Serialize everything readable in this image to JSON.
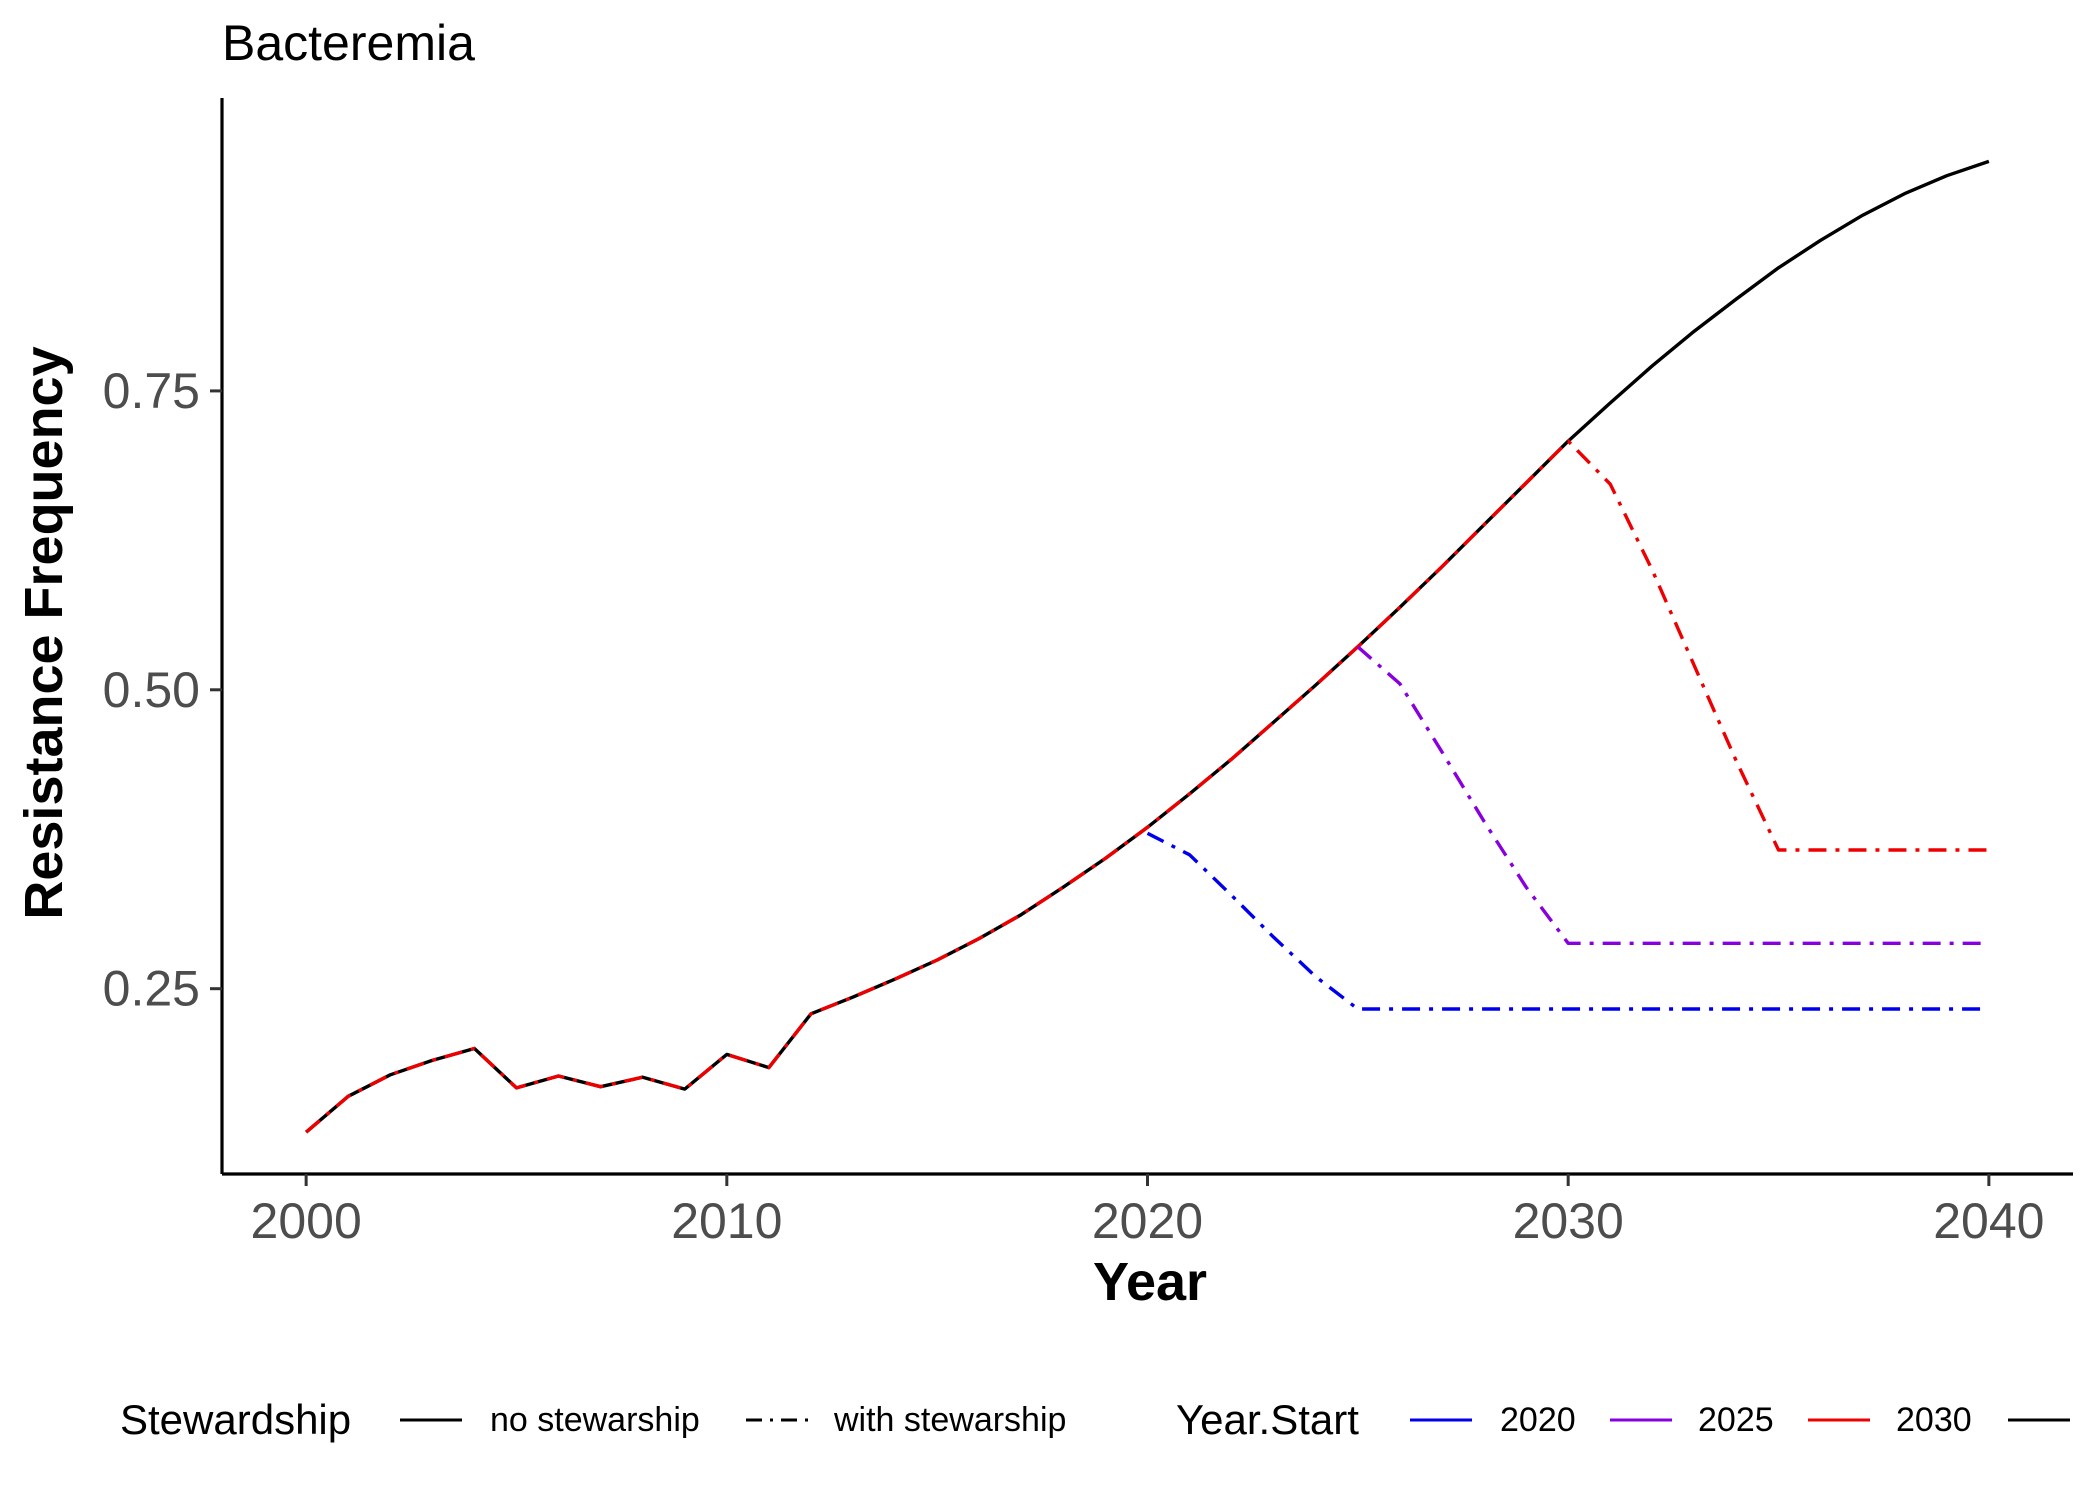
{
  "chart_data": {
    "type": "line",
    "title": "Bacteremia",
    "xlabel": "Year",
    "ylabel": "Resistance Frequency",
    "xlim": [
      1998,
      2042
    ],
    "ylim": [
      0.095,
      0.995
    ],
    "x_ticks": [
      2000,
      2010,
      2020,
      2030,
      2040
    ],
    "y_ticks": [
      0.25,
      0.5,
      0.75
    ],
    "x_tick_labels": [
      "2000",
      "2010",
      "2020",
      "2030",
      "2040"
    ],
    "y_tick_labels": [
      "0.25",
      "0.50",
      "0.75"
    ],
    "grid": false,
    "legend_position": "bottom",
    "colors": {
      "2020": "#0000ee",
      "2025": "#8800dd",
      "2030": "#ee0000",
      "no_stewarship": "#000000"
    },
    "series": [
      {
        "key": "no-stewarship",
        "linetype": "solid",
        "color": "#000000",
        "x": [
          2000,
          2001,
          2002,
          2003,
          2004,
          2005,
          2006,
          2007,
          2008,
          2009,
          2010,
          2011,
          2012,
          2013,
          2014,
          2015,
          2016,
          2017,
          2018,
          2019,
          2020,
          2021,
          2022,
          2023,
          2024,
          2025,
          2026,
          2027,
          2028,
          2029,
          2030,
          2031,
          2032,
          2033,
          2034,
          2035,
          2036,
          2037,
          2038,
          2039,
          2040
        ],
        "y": [
          0.13,
          0.16,
          0.178,
          0.19,
          0.2,
          0.167,
          0.177,
          0.168,
          0.176,
          0.166,
          0.195,
          0.184,
          0.229,
          0.243,
          0.258,
          0.274,
          0.292,
          0.312,
          0.335,
          0.359,
          0.385,
          0.413,
          0.442,
          0.473,
          0.504,
          0.536,
          0.569,
          0.603,
          0.638,
          0.673,
          0.708,
          0.74,
          0.771,
          0.8,
          0.827,
          0.853,
          0.876,
          0.897,
          0.915,
          0.93,
          0.942
        ]
      },
      {
        "key": "stewarship-2030",
        "linetype": "dashdot",
        "color": "#ee0000",
        "x": [
          2000,
          2001,
          2002,
          2003,
          2004,
          2005,
          2006,
          2007,
          2008,
          2009,
          2010,
          2011,
          2012,
          2013,
          2014,
          2015,
          2016,
          2017,
          2018,
          2019,
          2020,
          2021,
          2022,
          2023,
          2024,
          2025,
          2026,
          2027,
          2028,
          2029,
          2030,
          2031,
          2032,
          2033,
          2034,
          2035,
          2036,
          2037,
          2038,
          2039,
          2040
        ],
        "y": [
          0.13,
          0.16,
          0.178,
          0.19,
          0.2,
          0.167,
          0.177,
          0.168,
          0.176,
          0.166,
          0.195,
          0.184,
          0.229,
          0.243,
          0.258,
          0.274,
          0.292,
          0.312,
          0.335,
          0.359,
          0.385,
          0.413,
          0.442,
          0.473,
          0.504,
          0.536,
          0.569,
          0.603,
          0.638,
          0.673,
          0.708,
          0.672,
          0.6,
          0.52,
          0.44,
          0.366,
          0.366,
          0.366,
          0.366,
          0.366,
          0.366
        ]
      },
      {
        "key": "stewarship-2025",
        "linetype": "dashdot",
        "color": "#8800dd",
        "x": [
          2025,
          2026,
          2027,
          2028,
          2029,
          2030,
          2031,
          2032,
          2033,
          2034,
          2035,
          2036,
          2037,
          2038,
          2039,
          2040
        ],
        "y": [
          0.536,
          0.505,
          0.448,
          0.39,
          0.335,
          0.288,
          0.288,
          0.288,
          0.288,
          0.288,
          0.288,
          0.288,
          0.288,
          0.288,
          0.288,
          0.288
        ]
      },
      {
        "key": "stewarship-2020",
        "linetype": "dashdot",
        "color": "#0000ee",
        "x": [
          2020,
          2021,
          2022,
          2023,
          2024,
          2025,
          2026,
          2027,
          2028,
          2029,
          2030,
          2031,
          2032,
          2033,
          2034,
          2035,
          2036,
          2037,
          2038,
          2039,
          2040
        ],
        "y": [
          0.38,
          0.362,
          0.328,
          0.293,
          0.26,
          0.233,
          0.233,
          0.233,
          0.233,
          0.233,
          0.233,
          0.233,
          0.233,
          0.233,
          0.233,
          0.233,
          0.233,
          0.233,
          0.233,
          0.233,
          0.233
        ]
      }
    ],
    "legend": {
      "stewardship_title": "Stewardship",
      "stewardship_items": [
        {
          "label": "no stewarship",
          "linetype": "solid"
        },
        {
          "label": "with stewarship",
          "linetype": "dashdot"
        }
      ],
      "yearstart_title": "Year.Start",
      "yearstart_items": [
        {
          "label": "2020",
          "color": "#0000ee"
        },
        {
          "label": "2025",
          "color": "#8800dd"
        },
        {
          "label": "2030",
          "color": "#ee0000"
        },
        {
          "label": "",
          "color": "#000000"
        }
      ]
    }
  }
}
